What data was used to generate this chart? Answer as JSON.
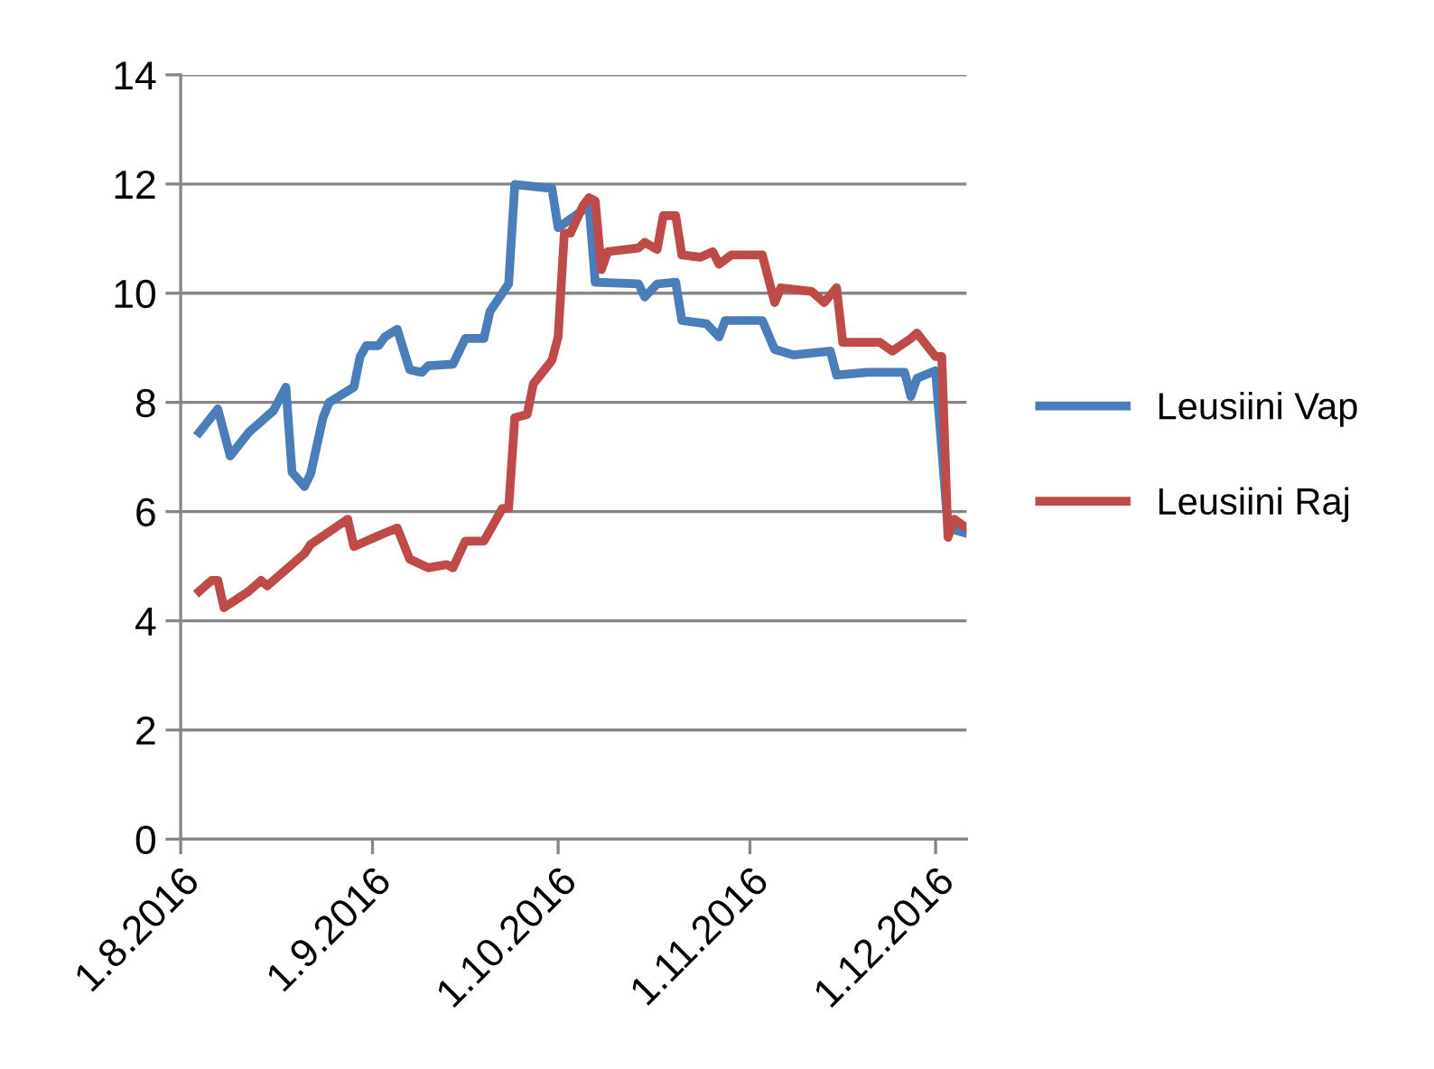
{
  "chart_data": {
    "type": "line",
    "grid": "y",
    "legend": "right",
    "marker": "none",
    "line_style": "solid",
    "xlim": [
      "2016-08-01",
      "2016-12-06"
    ],
    "xticks": [
      {
        "value": "2016-08-01",
        "label": "1.8.2016"
      },
      {
        "value": "2016-09-01",
        "label": "1.9.2016"
      },
      {
        "value": "2016-10-01",
        "label": "1.10.2016"
      },
      {
        "value": "2016-11-01",
        "label": "1.11.2016"
      },
      {
        "value": "2016-12-01",
        "label": "1.12.2016"
      }
    ],
    "ylim": [
      0,
      14
    ],
    "yticks": [
      0,
      2,
      4,
      6,
      8,
      10,
      12,
      14
    ],
    "series": [
      {
        "name": "Leusiini Vap",
        "color": "#4a7ebb",
        "x": [
          "2016-08-04",
          "2016-08-07",
          "2016-08-09",
          "2016-08-12",
          "2016-08-16",
          "2016-08-18",
          "2016-08-19",
          "2016-08-21",
          "2016-08-22",
          "2016-08-24",
          "2016-08-25",
          "2016-08-29",
          "2016-08-30",
          "2016-08-31",
          "2016-09-02",
          "2016-09-03",
          "2016-09-05",
          "2016-09-07",
          "2016-09-09",
          "2016-09-10",
          "2016-09-14",
          "2016-09-16",
          "2016-09-19",
          "2016-09-20",
          "2016-09-23",
          "2016-09-24",
          "2016-09-30",
          "2016-10-01",
          "2016-10-06",
          "2016-10-07",
          "2016-10-14",
          "2016-10-15",
          "2016-10-17",
          "2016-10-20",
          "2016-10-21",
          "2016-10-25",
          "2016-10-27",
          "2016-10-28",
          "2016-11-03",
          "2016-11-05",
          "2016-11-08",
          "2016-11-14",
          "2016-11-15",
          "2016-11-20",
          "2016-11-26",
          "2016-11-27",
          "2016-11-28",
          "2016-12-01",
          "2016-12-03",
          "2016-12-06"
        ],
        "values": [
          7.45,
          7.88,
          7.02,
          7.45,
          7.85,
          8.28,
          6.72,
          6.46,
          6.69,
          7.72,
          8.0,
          8.28,
          8.84,
          9.04,
          9.04,
          9.2,
          9.34,
          8.6,
          8.55,
          8.67,
          8.7,
          9.17,
          9.17,
          9.67,
          10.17,
          11.99,
          11.92,
          11.2,
          11.6,
          10.2,
          10.17,
          9.93,
          10.17,
          10.2,
          9.5,
          9.44,
          9.2,
          9.5,
          9.5,
          8.97,
          8.87,
          8.94,
          8.5,
          8.55,
          8.55,
          8.11,
          8.44,
          8.58,
          5.7,
          5.6
        ]
      },
      {
        "name": "Leusiini Raj",
        "color": "#be4b48",
        "x": [
          "2016-08-04",
          "2016-08-06",
          "2016-08-07",
          "2016-08-08",
          "2016-08-12",
          "2016-08-14",
          "2016-08-15",
          "2016-08-21",
          "2016-08-22",
          "2016-08-28",
          "2016-08-29",
          "2016-09-02",
          "2016-09-05",
          "2016-09-07",
          "2016-09-10",
          "2016-09-13",
          "2016-09-14",
          "2016-09-16",
          "2016-09-19",
          "2016-09-22",
          "2016-09-23",
          "2016-09-24",
          "2016-09-26",
          "2016-09-27",
          "2016-09-30",
          "2016-10-01",
          "2016-10-02",
          "2016-10-03",
          "2016-10-05",
          "2016-10-06",
          "2016-10-07",
          "2016-10-08",
          "2016-10-09",
          "2016-10-14",
          "2016-10-15",
          "2016-10-17",
          "2016-10-18",
          "2016-10-20",
          "2016-10-21",
          "2016-10-24",
          "2016-10-26",
          "2016-10-27",
          "2016-10-29",
          "2016-11-03",
          "2016-11-05",
          "2016-11-06",
          "2016-11-11",
          "2016-11-13",
          "2016-11-15",
          "2016-11-16",
          "2016-11-22",
          "2016-11-24",
          "2016-11-27",
          "2016-11-28",
          "2016-12-01",
          "2016-12-02",
          "2016-12-03",
          "2016-12-04",
          "2016-12-06"
        ],
        "values": [
          4.54,
          4.74,
          4.74,
          4.24,
          4.54,
          4.74,
          4.64,
          5.23,
          5.4,
          5.86,
          5.36,
          5.56,
          5.7,
          5.13,
          4.97,
          5.03,
          4.97,
          5.46,
          5.46,
          6.06,
          6.06,
          7.72,
          7.78,
          8.34,
          8.77,
          9.2,
          11.1,
          11.1,
          11.6,
          11.75,
          11.69,
          10.43,
          10.76,
          10.83,
          10.93,
          10.8,
          11.42,
          11.42,
          10.7,
          10.66,
          10.76,
          10.53,
          10.7,
          10.7,
          9.83,
          10.1,
          10.03,
          9.83,
          10.1,
          9.1,
          9.1,
          8.94,
          9.17,
          9.27,
          8.84,
          8.84,
          5.53,
          5.86,
          5.7
        ]
      }
    ]
  }
}
